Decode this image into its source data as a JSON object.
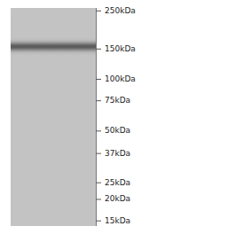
{
  "chart_data": {
    "type": "gel",
    "log": "y",
    "ylim": [
      260,
      14
    ],
    "yticks": [
      {
        "value": 250,
        "label": "250kDa"
      },
      {
        "value": 150,
        "label": "150kDa"
      },
      {
        "value": 100,
        "label": "100kDa"
      },
      {
        "value": 75,
        "label": "75kDa"
      },
      {
        "value": 50,
        "label": "50kDa"
      },
      {
        "value": 37,
        "label": "37kDa"
      },
      {
        "value": 25,
        "label": "25kDa"
      },
      {
        "value": 20,
        "label": "20kDa"
      },
      {
        "value": 15,
        "label": "15kDa"
      }
    ],
    "values": [
      155
    ],
    "sigmas": [
      6
    ],
    "intensities": [
      0.55
    ],
    "color": "#c3c3c3"
  }
}
